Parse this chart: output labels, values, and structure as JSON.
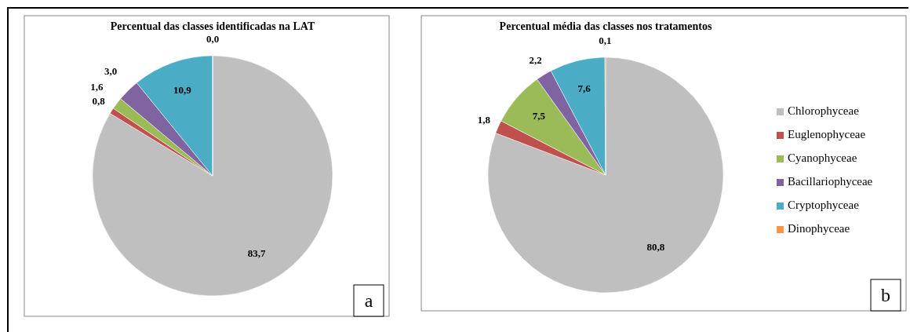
{
  "chart_data": [
    {
      "type": "pie",
      "title": "Percentual das classes identificadas na LAT",
      "categories": [
        null,
        null,
        null,
        null,
        null,
        null
      ],
      "values": [
        83.7,
        0.8,
        1.6,
        3.0,
        10.9,
        0.0
      ],
      "value_labels": [
        "83,7",
        "0,8",
        "1,6",
        "3,0",
        "10,9",
        "0,0"
      ],
      "colors": [
        "#bfbfbf",
        "#c0504d",
        "#9bbb59",
        "#8064a2",
        "#4bacc6",
        "#f79646"
      ],
      "annotations": [
        "a"
      ]
    },
    {
      "type": "pie",
      "title": "Percentual média das classes nos tratamentos",
      "categories": [
        "Chlorophyceae",
        "Euglenophyceae",
        "Cyanophyceae",
        "Bacillariophyceae",
        "Cryptophyceae",
        "Dinophyceae"
      ],
      "values": [
        80.8,
        1.8,
        7.5,
        2.2,
        7.6,
        0.1
      ],
      "value_labels": [
        "80,8",
        "1,8",
        "7,5",
        "2,2",
        "7,6",
        "0,1"
      ],
      "colors": [
        "#bfbfbf",
        "#c0504d",
        "#9bbb59",
        "#8064a2",
        "#4bacc6",
        "#f79646"
      ],
      "legend": "right",
      "annotations": [
        "b"
      ]
    }
  ]
}
